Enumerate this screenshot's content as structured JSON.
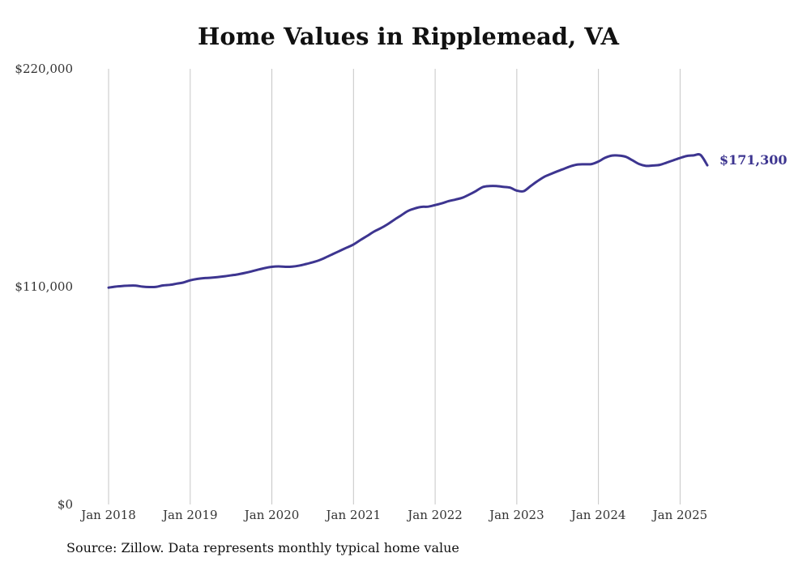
{
  "chart_data": {
    "type": "line",
    "title": "Home Values in Ripplemead, VA",
    "xlabel": "",
    "ylabel": "",
    "ylim": [
      0,
      220000
    ],
    "xlim": [
      "2018-01",
      "2025-05"
    ],
    "y_ticks": [
      "$0",
      "$110,000",
      "$220,000"
    ],
    "y_tick_values": [
      0,
      110000,
      220000
    ],
    "x_ticks": [
      "Jan 2018",
      "Jan 2019",
      "Jan 2020",
      "Jan 2021",
      "Jan 2022",
      "Jan 2023",
      "Jan 2024",
      "Jan 2025"
    ],
    "x_tick_dates": [
      "2018-01",
      "2019-01",
      "2020-01",
      "2021-01",
      "2022-01",
      "2023-01",
      "2024-01",
      "2025-01"
    ],
    "grid": "vertical",
    "line_color": "#3d3590",
    "end_label": "$171,300",
    "series": [
      {
        "x": [
          "2018-01",
          "2018-02",
          "2018-03",
          "2018-04",
          "2018-05",
          "2018-06",
          "2018-07",
          "2018-08",
          "2018-09",
          "2018-10",
          "2018-11",
          "2018-12",
          "2019-01",
          "2019-02",
          "2019-03",
          "2019-04",
          "2019-05",
          "2019-06",
          "2019-07",
          "2019-08",
          "2019-09",
          "2019-10",
          "2019-11",
          "2019-12",
          "2020-01",
          "2020-02",
          "2020-03",
          "2020-04",
          "2020-05",
          "2020-06",
          "2020-07",
          "2020-08",
          "2020-09",
          "2020-10",
          "2020-11",
          "2020-12",
          "2021-01",
          "2021-02",
          "2021-03",
          "2021-04",
          "2021-05",
          "2021-06",
          "2021-07",
          "2021-08",
          "2021-09",
          "2021-10",
          "2021-11",
          "2021-12",
          "2022-01",
          "2022-02",
          "2022-03",
          "2022-04",
          "2022-05",
          "2022-06",
          "2022-07",
          "2022-08",
          "2022-09",
          "2022-10",
          "2022-11",
          "2022-12",
          "2023-01",
          "2023-02",
          "2023-03",
          "2023-04",
          "2023-05",
          "2023-06",
          "2023-07",
          "2023-08",
          "2023-09",
          "2023-10",
          "2023-11",
          "2023-12",
          "2024-01",
          "2024-02",
          "2024-03",
          "2024-04",
          "2024-05",
          "2024-06",
          "2024-07",
          "2024-08",
          "2024-09",
          "2024-10",
          "2024-11",
          "2024-12",
          "2025-01",
          "2025-02",
          "2025-03",
          "2025-04",
          "2025-05"
        ],
        "values": [
          109500,
          110000,
          110300,
          110500,
          110500,
          110000,
          109800,
          109900,
          110600,
          110900,
          111500,
          112100,
          113200,
          113900,
          114300,
          114500,
          114800,
          115200,
          115700,
          116200,
          116900,
          117700,
          118600,
          119400,
          120000,
          120200,
          120000,
          120100,
          120600,
          121400,
          122300,
          123400,
          124900,
          126500,
          128100,
          129700,
          131300,
          133500,
          135600,
          137800,
          139500,
          141500,
          143800,
          146000,
          148200,
          149500,
          150300,
          150400,
          151200,
          152100,
          153200,
          154000,
          154900,
          156500,
          158300,
          160300,
          160800,
          160800,
          160400,
          160000,
          158500,
          158200,
          160700,
          163200,
          165400,
          166900,
          168300,
          169600,
          170900,
          171700,
          171800,
          171900,
          173200,
          175100,
          176200,
          176200,
          175600,
          173800,
          171900,
          171000,
          171200,
          171500,
          172600,
          173800,
          175000,
          176000,
          176300,
          176500,
          171300
        ]
      }
    ]
  },
  "source": "Source: Zillow. Data represents monthly typical home value"
}
